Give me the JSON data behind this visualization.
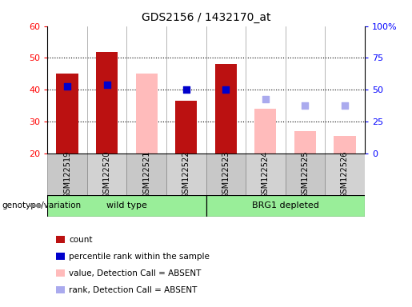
{
  "title": "GDS2156 / 1432170_at",
  "samples": [
    "GSM122519",
    "GSM122520",
    "GSM122521",
    "GSM122522",
    "GSM122523",
    "GSM122524",
    "GSM122525",
    "GSM122526"
  ],
  "ylim_left": [
    20,
    60
  ],
  "ylim_right": [
    0,
    100
  ],
  "yticks_left": [
    20,
    30,
    40,
    50,
    60
  ],
  "yticks_right": [
    0,
    25,
    50,
    75,
    100
  ],
  "ytick_labels_right": [
    "0",
    "25",
    "50",
    "75",
    "100%"
  ],
  "red_bars": {
    "indices": [
      0,
      1,
      3,
      4
    ],
    "values": [
      45,
      52,
      36.5,
      48
    ],
    "color": "#bb1111"
  },
  "pink_bars": {
    "indices": [
      2,
      3,
      5,
      6,
      7
    ],
    "values": [
      45,
      36.5,
      34,
      27,
      25.5
    ],
    "color": "#ffbbbb"
  },
  "blue_squares": {
    "indices": [
      0,
      1,
      3,
      4
    ],
    "values": [
      41,
      41.5,
      40,
      40
    ],
    "color": "#0000cc",
    "size": 35
  },
  "light_blue_squares": {
    "indices": [
      5,
      6,
      7
    ],
    "values": [
      37,
      35,
      35
    ],
    "color": "#aaaaee",
    "size": 35
  },
  "bar_width": 0.55,
  "background_color": "#ffffff",
  "plot_bg": "#ffffff",
  "gray_label_bg": "#cccccc",
  "group_colors": [
    "#99ee99",
    "#55cc55"
  ],
  "groups": [
    {
      "label": "wild type",
      "start": 0,
      "end": 3
    },
    {
      "label": "BRG1 depleted",
      "start": 4,
      "end": 7
    }
  ],
  "genotype_label": "genotype/variation",
  "legend_items": [
    {
      "label": "count",
      "color": "#bb1111"
    },
    {
      "label": "percentile rank within the sample",
      "color": "#0000cc"
    },
    {
      "label": "value, Detection Call = ABSENT",
      "color": "#ffbbbb"
    },
    {
      "label": "rank, Detection Call = ABSENT",
      "color": "#aaaaee"
    }
  ],
  "grid_lines": [
    30,
    40,
    50
  ],
  "dotted_line_color": "black",
  "vline_color": "#999999"
}
